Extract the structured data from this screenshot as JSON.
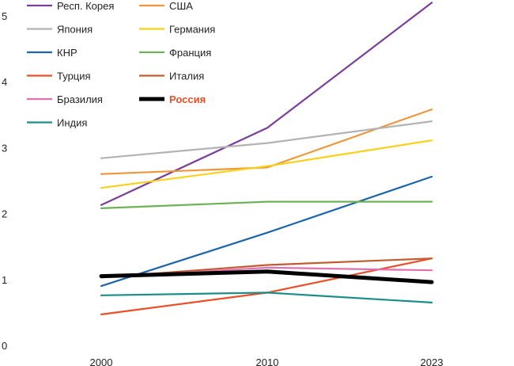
{
  "chart_data": {
    "type": "line",
    "title": "",
    "xlabel": "",
    "ylabel": "",
    "x": [
      "2000",
      "2010",
      "2023"
    ],
    "ylim": [
      0,
      5
    ],
    "yticks": [
      "0",
      "1",
      "2",
      "3",
      "4",
      "5"
    ],
    "grid": false,
    "legend_position": "top-left",
    "series": [
      {
        "name": "Респ. Корея",
        "color": "#7a3f98",
        "values": [
          2.13,
          3.3,
          5.2
        ]
      },
      {
        "name": "США",
        "color": "#f0963a",
        "values": [
          2.6,
          2.7,
          3.58
        ]
      },
      {
        "name": "Япония",
        "color": "#b3b3b3",
        "values": [
          2.84,
          3.07,
          3.4
        ]
      },
      {
        "name": "Германия",
        "color": "#f7d11a",
        "values": [
          2.39,
          2.72,
          3.11
        ]
      },
      {
        "name": "КНР",
        "color": "#1f65aa",
        "values": [
          0.9,
          1.71,
          2.56
        ]
      },
      {
        "name": "Франция",
        "color": "#6db356",
        "values": [
          2.08,
          2.18,
          2.18
        ]
      },
      {
        "name": "Турция",
        "color": "#e8502a",
        "values": [
          0.47,
          0.8,
          1.32
        ]
      },
      {
        "name": "Италия",
        "color": "#c25c30",
        "values": [
          1.03,
          1.22,
          1.32
        ]
      },
      {
        "name": "Бразилия",
        "color": "#e070b0",
        "values": [
          1.03,
          1.18,
          1.14
        ]
      },
      {
        "name": "Россия",
        "color": "#000000",
        "values": [
          1.05,
          1.12,
          0.96
        ],
        "highlight": true
      },
      {
        "name": "Индия",
        "color": "#1a8f8a",
        "values": [
          0.76,
          0.8,
          0.65
        ]
      }
    ]
  }
}
